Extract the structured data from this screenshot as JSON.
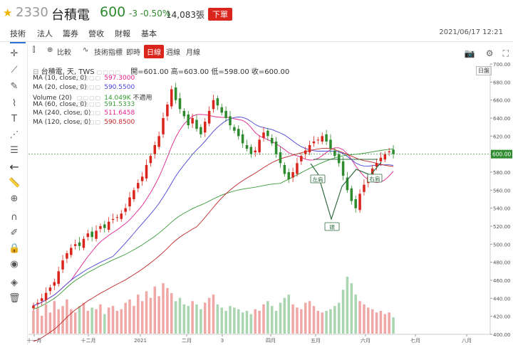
{
  "header": {
    "star_icon": "star-icon",
    "code": "2330",
    "name": "台積電",
    "price": "600",
    "change": "-3 -0.50%",
    "volume": "14,083張",
    "badge": "下單"
  },
  "tabs": [
    "技術",
    "法人",
    "籌券",
    "營收",
    "財報",
    "基本"
  ],
  "datetime": "2021/06/17 12:21",
  "toolbar": {
    "compare": "比較",
    "indicators": "技術指標",
    "periods": [
      "即時",
      "日線",
      "週線",
      "月線"
    ],
    "active_period": "日線"
  },
  "legend": {
    "title": "台積電, 天, TWS",
    "ohlc": "開=601.00 高=603.00 低=598.00 收=600.00",
    "rows": [
      {
        "label": "MA (10, close, 0)",
        "value": "597.3000",
        "color": "#e0208a"
      },
      {
        "label": "MA (20, close, 0)",
        "value": "590.5500",
        "color": "#4a44d6"
      },
      {
        "label": "Volume (20)",
        "value": "14.049K",
        "extra": "不適用",
        "color": "#2e9b2e"
      },
      {
        "label": "MA (60, close, 0)",
        "value": "591.5333",
        "color": "#3a9a3a"
      },
      {
        "label": "MA (240, close, 0)",
        "value": "511.6458",
        "color": "#e0208a"
      },
      {
        "label": "MA (120, close, 0)",
        "value": "590.8500",
        "color": "#c0262a"
      }
    ]
  },
  "right_badge": "日盤",
  "price_label": "600.00",
  "pattern_labels": {
    "left": "左肩",
    "head": "頭",
    "right": "右肩"
  },
  "colors": {
    "up": "#d9251c",
    "down": "#2e8b2e",
    "ma10": "#e0208a",
    "ma20": "#4a44d6",
    "ma60": "#3a9a3a",
    "ma120": "#c0262a"
  },
  "chart_data": {
    "type": "candlestick",
    "title": "台積電, 天, TWS",
    "ylim": [
      400,
      700
    ],
    "y_ticks": [
      400,
      420,
      440,
      460,
      480,
      500,
      520,
      540,
      560,
      580,
      600,
      620,
      640,
      660,
      680,
      700
    ],
    "x_ticks": [
      "十一月",
      "十二月",
      "2021",
      "二月",
      "3",
      "四月",
      "五月",
      "六月",
      "七月",
      "八月"
    ],
    "close_series": [
      432,
      435,
      440,
      446,
      452,
      458,
      470,
      482,
      490,
      496,
      500,
      498,
      506,
      512,
      508,
      515,
      520,
      518,
      525,
      528,
      530,
      534,
      540,
      552,
      560,
      568,
      575,
      588,
      598,
      610,
      620,
      640,
      655,
      672,
      660,
      650,
      642,
      632,
      640,
      628,
      622,
      636,
      648,
      660,
      654,
      646,
      640,
      632,
      626,
      620,
      612,
      606,
      600,
      604,
      616,
      624,
      620,
      612,
      600,
      590,
      578,
      572,
      580,
      590,
      598,
      604,
      610,
      614,
      616,
      620,
      614,
      606,
      598,
      590,
      576,
      560,
      548,
      540,
      556,
      566,
      575,
      584,
      590,
      596,
      600,
      603,
      600
    ],
    "volume_series": [
      14,
      16,
      11,
      18,
      13,
      20,
      15,
      17,
      21,
      15,
      13,
      17,
      19,
      14,
      16,
      15,
      18,
      12,
      16,
      17,
      14,
      15,
      19,
      21,
      17,
      24,
      20,
      26,
      22,
      29,
      23,
      31,
      28,
      25,
      20,
      22,
      18,
      17,
      20,
      18,
      15,
      19,
      22,
      24,
      18,
      16,
      14,
      17,
      16,
      15,
      13,
      14,
      12,
      15,
      14,
      18,
      20,
      17,
      14,
      19,
      22,
      24,
      18,
      16,
      15,
      19,
      20,
      17,
      14,
      13,
      14,
      15,
      17,
      19,
      27,
      35,
      31,
      24,
      20,
      18,
      16,
      15,
      13,
      14,
      12,
      13,
      10
    ],
    "overlays": [
      "MA 10",
      "MA 20",
      "MA 60",
      "MA 120",
      "MA 240"
    ],
    "current_price": 600.0
  }
}
